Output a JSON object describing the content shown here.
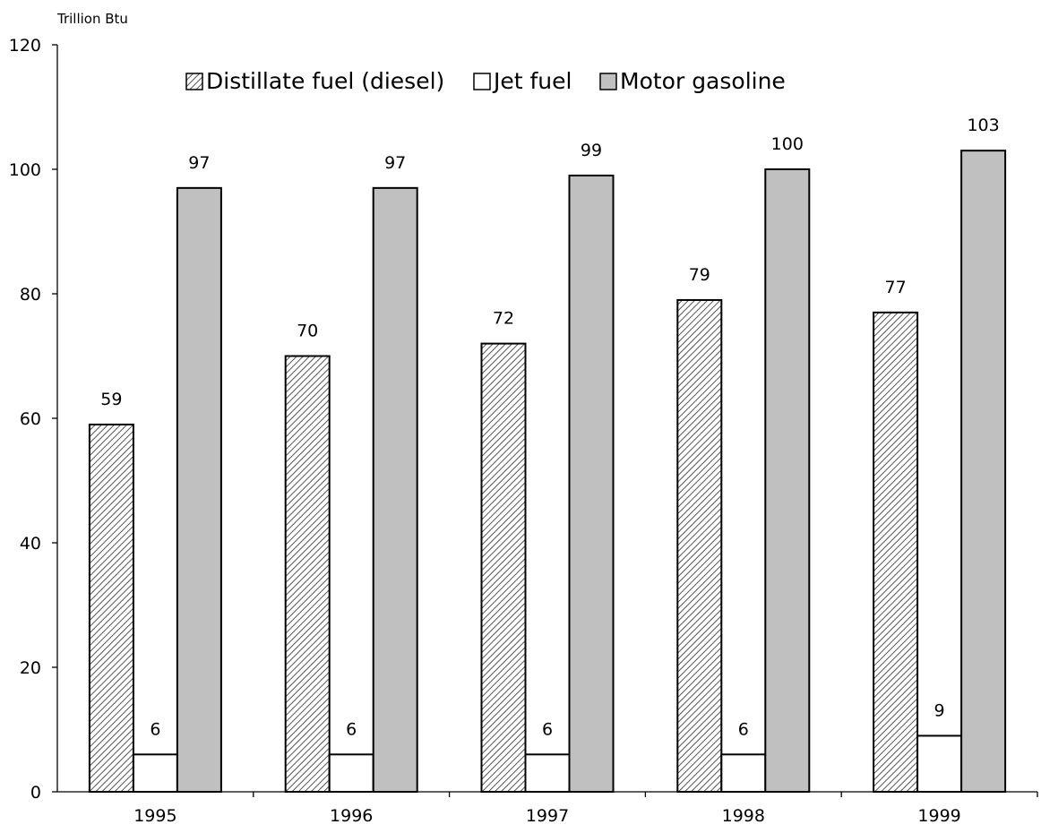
{
  "chart_data": {
    "type": "bar",
    "title": "",
    "ylabel": "Trillion Btu",
    "xlabel": "",
    "ylim": [
      0,
      120
    ],
    "yticks": [
      0,
      20,
      40,
      60,
      80,
      100,
      120
    ],
    "categories": [
      "1995",
      "1996",
      "1997",
      "1998",
      "1999"
    ],
    "series": [
      {
        "name": "Distillate fuel (diesel)",
        "values": [
          59,
          70,
          72,
          79,
          77
        ],
        "style": "hatched"
      },
      {
        "name": "Jet fuel",
        "values": [
          6,
          6,
          6,
          6,
          9
        ],
        "style": "white"
      },
      {
        "name": "Motor gasoline",
        "values": [
          97,
          97,
          99,
          100,
          103
        ],
        "style": "gray"
      }
    ],
    "data_labels": [
      [
        "59",
        "70",
        "72",
        "79",
        "77"
      ],
      [
        "6",
        "6",
        "6",
        "6",
        "9"
      ],
      [
        "97",
        "97",
        "99",
        "100",
        "103"
      ]
    ],
    "legend": "top-center",
    "grid": false
  },
  "colors": {
    "gasoline_fill": "#c0c0c0",
    "jet_fill": "#ffffff",
    "hatch_line": "#555555",
    "stroke": "#000000"
  }
}
